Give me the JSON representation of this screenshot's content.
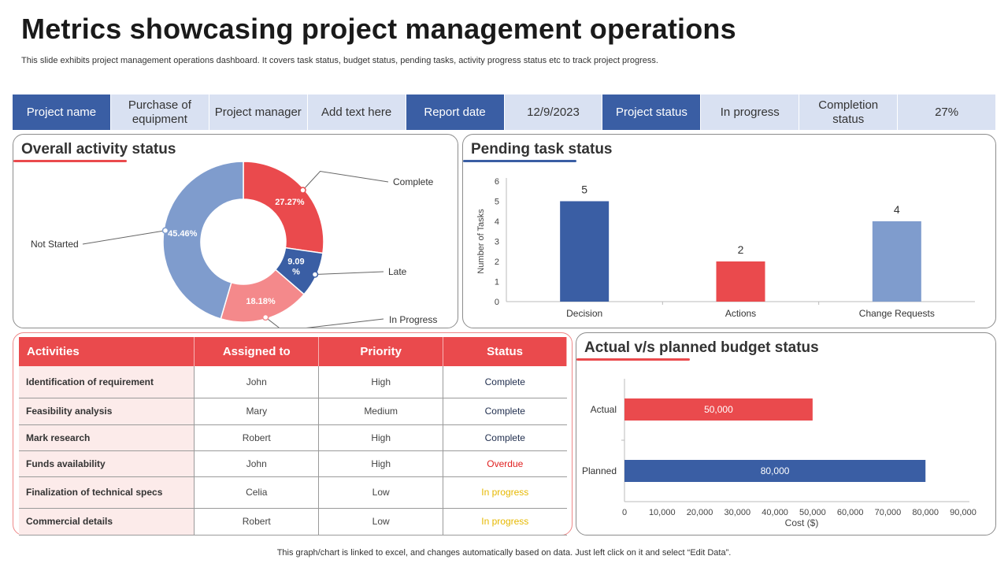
{
  "header": {
    "title": "Metrics showcasing project management operations",
    "subtitle": "This slide exhibits project management operations dashboard. It covers task status, budget status, pending tasks, activity progress status etc to track project progress."
  },
  "info_strip": [
    {
      "text": "Project name",
      "style": "dark"
    },
    {
      "text": "Purchase of equipment",
      "style": "light"
    },
    {
      "text": "Project manager",
      "style": "light"
    },
    {
      "text": "Add text here",
      "style": "light"
    },
    {
      "text": "Report date",
      "style": "dark"
    },
    {
      "text": "12/9/2023",
      "style": "light"
    },
    {
      "text": "Project status",
      "style": "dark"
    },
    {
      "text": "In progress",
      "style": "light"
    },
    {
      "text": "Completion status",
      "style": "light"
    },
    {
      "text": "27%",
      "style": "light"
    }
  ],
  "colors": {
    "accent_red": "#ea4a4d",
    "accent_blue": "#3a5ea4",
    "light_blue": "#7f9ccd",
    "pink": "#f4898b"
  },
  "activity": {
    "title": "Overall activity status",
    "chart_data": {
      "type": "pie",
      "slices": [
        {
          "name": "Complete",
          "value": 27.27,
          "label": "27.27%",
          "color": "#ea4a4d"
        },
        {
          "name": "Late",
          "value": 9.09,
          "label": "9.09 %",
          "color": "#3a5ea4"
        },
        {
          "name": "In Progress",
          "value": 18.18,
          "label": "18.18%",
          "color": "#f4898b"
        },
        {
          "name": "Not Started",
          "value": 45.46,
          "label": "45.46%",
          "color": "#7f9ccd"
        }
      ]
    }
  },
  "pending": {
    "title": "Pending task status",
    "chart_data": {
      "type": "bar",
      "categories": [
        "Decision",
        "Actions",
        "Change Requests"
      ],
      "values": [
        5,
        2,
        4
      ],
      "colors": [
        "#3a5ea4",
        "#ea4a4d",
        "#7f9ccd"
      ],
      "ylabel": "Number of Tasks",
      "ylim": [
        0,
        6
      ],
      "yticks": [
        "0",
        "1",
        "2",
        "3",
        "4",
        "5",
        "6"
      ]
    }
  },
  "table": {
    "headers": [
      "Activities",
      "Assigned to",
      "Priority",
      "Status"
    ],
    "rows": [
      {
        "activity": "Identification of requirement",
        "assigned": "John",
        "priority": "High",
        "status": "Complete",
        "status_color": "#1f2d4d"
      },
      {
        "activity": "Feasibility analysis",
        "assigned": "Mary",
        "priority": "Medium",
        "status": "Complete",
        "status_color": "#1f2d4d"
      },
      {
        "activity": "Mark research",
        "assigned": "Robert",
        "priority": "High",
        "status": "Complete",
        "status_color": "#1f2d4d"
      },
      {
        "activity": "Funds availability",
        "assigned": "John",
        "priority": "High",
        "status": "Overdue",
        "status_color": "#e02020"
      },
      {
        "activity": "Finalization of technical specs",
        "assigned": "Celia",
        "priority": "Low",
        "status": "In progress",
        "status_color": "#e6b800"
      },
      {
        "activity": "Commercial details",
        "assigned": "Robert",
        "priority": "Low",
        "status": "In progress",
        "status_color": "#e6b800"
      }
    ]
  },
  "budget": {
    "title": "Actual v/s planned budget status",
    "chart_data": {
      "type": "bar",
      "orientation": "horizontal",
      "categories": [
        "Actual",
        "Planned"
      ],
      "values": [
        50000,
        80000
      ],
      "labels": [
        "50,000",
        "80,000"
      ],
      "colors": [
        "#ea4a4d",
        "#3a5ea4"
      ],
      "xlabel": "Cost ($)",
      "xlim": [
        0,
        90000
      ],
      "xticks": [
        "0",
        "10,000",
        "20,000",
        "30,000",
        "40,000",
        "50,000",
        "60,000",
        "70,000",
        "80,000",
        "90,000"
      ]
    }
  },
  "footer": "This graph/chart is linked to excel,  and changes automatically based on data. Just left click on it and select “Edit Data”."
}
